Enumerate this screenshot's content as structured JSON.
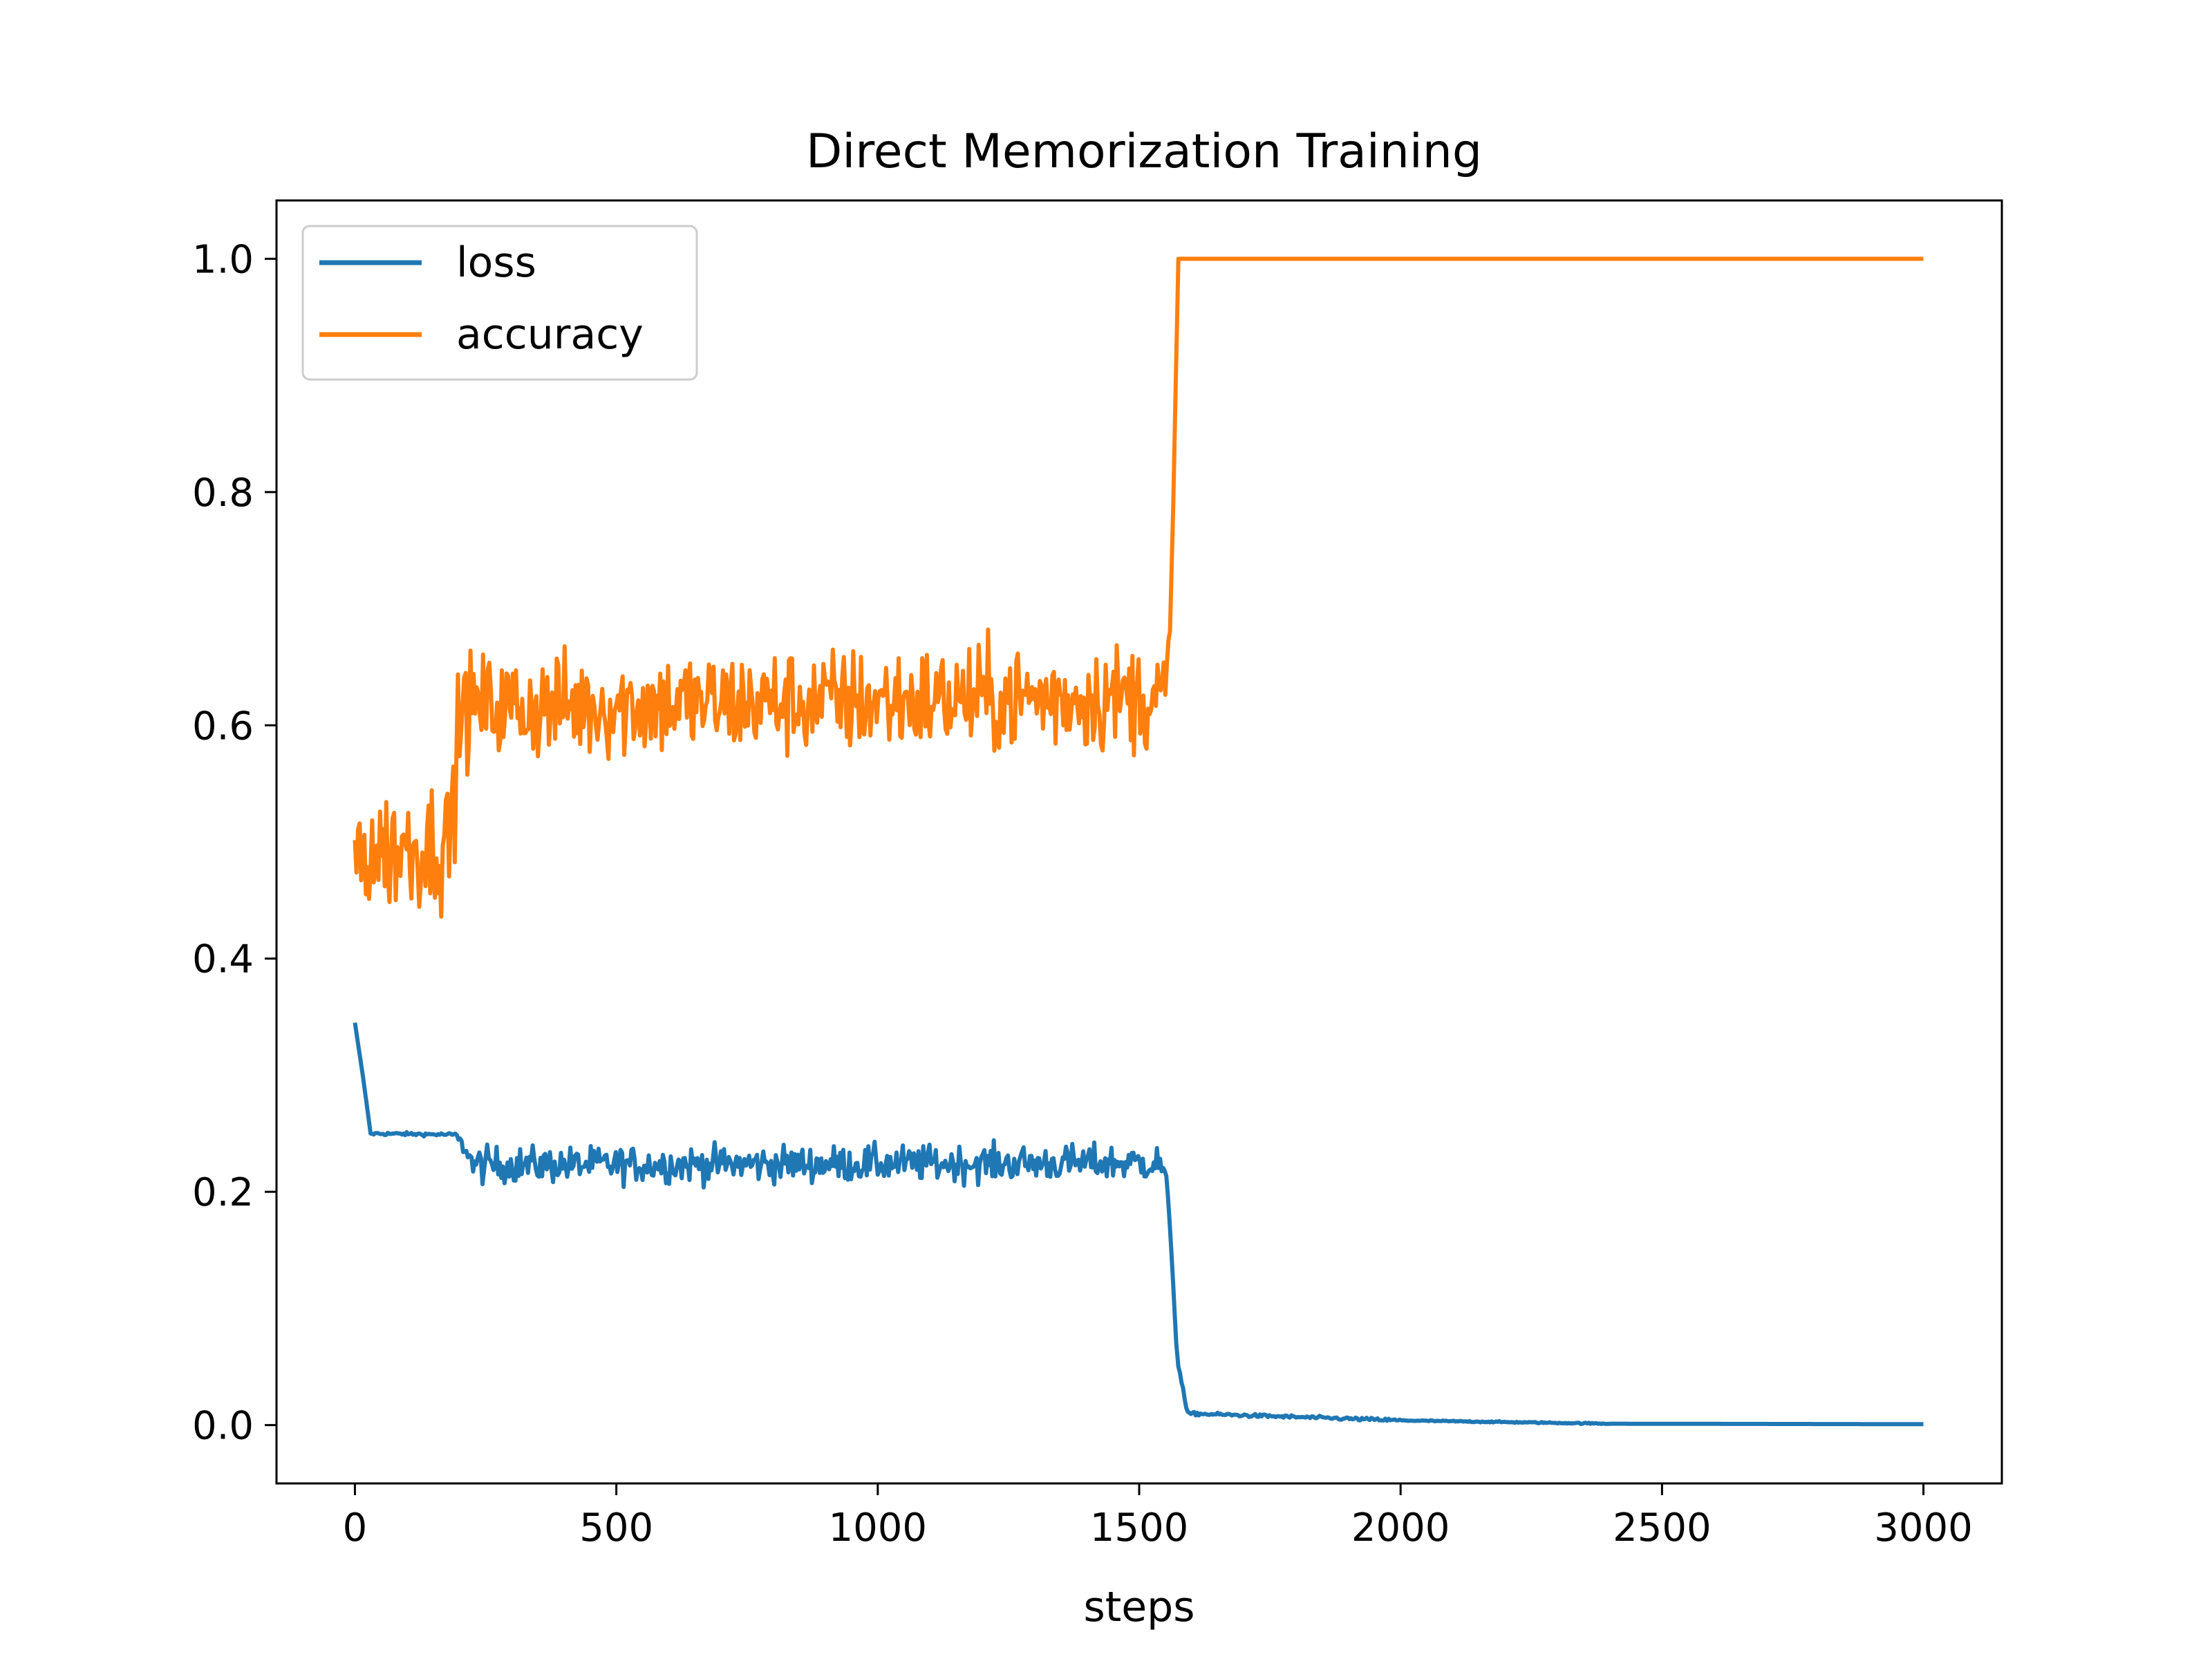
{
  "chart_data": {
    "type": "line",
    "title": "Direct Memorization Training",
    "xlabel": "steps",
    "ylabel": "",
    "xlim": [
      -150,
      3150
    ],
    "ylim": [
      -0.05,
      1.05
    ],
    "xticks": [
      0,
      500,
      1000,
      1500,
      2000,
      2500,
      3000
    ],
    "xtick_labels": [
      "0",
      "500",
      "1000",
      "1500",
      "2000",
      "2500",
      "3000"
    ],
    "yticks": [
      0.0,
      0.2,
      0.4,
      0.6,
      0.8,
      1.0
    ],
    "ytick_labels": [
      "0.0",
      "0.2",
      "0.4",
      "0.6",
      "0.8",
      "1.0"
    ],
    "grid": false,
    "legend_position": "top-left",
    "series": [
      {
        "name": "loss",
        "color": "#1f77b4",
        "segments": [
          {
            "x0": 0,
            "x1": 15,
            "from": 0.345,
            "to": 0.3,
            "noise": 0.0
          },
          {
            "x0": 15,
            "x1": 30,
            "from": 0.3,
            "to": 0.25,
            "noise": 0.0
          },
          {
            "x0": 30,
            "x1": 195,
            "from": 0.25,
            "to": 0.249,
            "noise": 0.001
          },
          {
            "x0": 195,
            "x1": 220,
            "from": 0.245,
            "to": 0.232,
            "noise": 0.005
          },
          {
            "x0": 220,
            "x1": 1540,
            "from": 0.223,
            "to": 0.225,
            "noise": 0.011
          },
          {
            "x0": 1540,
            "x1": 1552,
            "from": 0.224,
            "to": 0.21,
            "noise": 0.006
          },
          {
            "x0": 1552,
            "x1": 1562,
            "from": 0.21,
            "to": 0.15,
            "noise": 0.003
          },
          {
            "x0": 1562,
            "x1": 1572,
            "from": 0.15,
            "to": 0.06,
            "noise": 0.003
          },
          {
            "x0": 1572,
            "x1": 1590,
            "from": 0.06,
            "to": 0.015,
            "noise": 0.002
          },
          {
            "x0": 1590,
            "x1": 2000,
            "from": 0.01,
            "to": 0.004,
            "noise": 0.001
          },
          {
            "x0": 2000,
            "x1": 2400,
            "from": 0.004,
            "to": 0.0012,
            "noise": 0.0004
          },
          {
            "x0": 2400,
            "x1": 3000,
            "from": 0.0012,
            "to": 0.0008,
            "noise": 0.0
          }
        ]
      },
      {
        "name": "accuracy",
        "color": "#ff7f0e",
        "segments": [
          {
            "x0": 0,
            "x1": 185,
            "from": 0.49,
            "to": 0.5,
            "noise": 0.038
          },
          {
            "x0": 185,
            "x1": 200,
            "from": 0.52,
            "to": 0.6,
            "noise": 0.04
          },
          {
            "x0": 200,
            "x1": 1550,
            "from": 0.615,
            "to": 0.625,
            "noise": 0.033
          },
          {
            "x0": 1550,
            "x1": 1560,
            "from": 0.64,
            "to": 0.68,
            "noise": 0.01
          },
          {
            "x0": 1560,
            "x1": 1575,
            "from": 0.68,
            "to": 1.0,
            "noise": 0.0
          },
          {
            "x0": 1575,
            "x1": 3000,
            "from": 1.0,
            "to": 1.0,
            "noise": 0.0
          }
        ]
      }
    ]
  }
}
